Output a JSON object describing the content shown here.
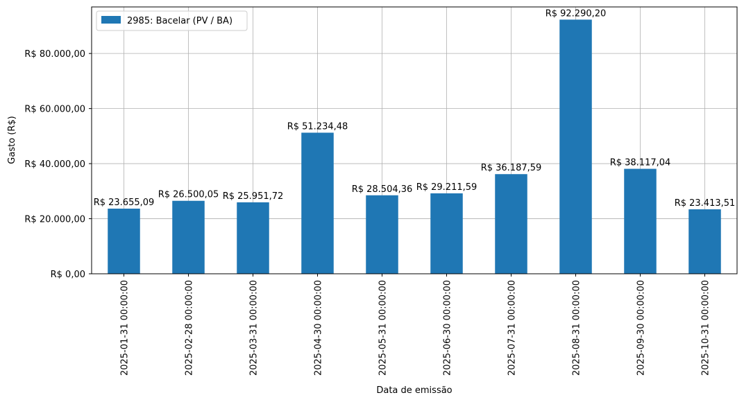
{
  "chart_data": {
    "type": "bar",
    "categories": [
      "2025-01-31 00:00:00",
      "2025-02-28 00:00:00",
      "2025-03-31 00:00:00",
      "2025-04-30 00:00:00",
      "2025-05-31 00:00:00",
      "2025-06-30 00:00:00",
      "2025-07-31 00:00:00",
      "2025-08-31 00:00:00",
      "2025-09-30 00:00:00",
      "2025-10-31 00:00:00"
    ],
    "series": [
      {
        "name": "2985: Bacelar (PV / BA)",
        "color": "#1f77b4",
        "values": [
          23655.09,
          26500.05,
          25951.72,
          51234.48,
          28504.36,
          29211.59,
          36187.59,
          92290.2,
          38117.04,
          23413.51
        ]
      }
    ],
    "data_labels": [
      "R$ 23.655,09",
      "R$ 26.500,05",
      "R$ 25.951,72",
      "R$ 51.234,48",
      "R$ 28.504,36",
      "R$ 29.211,59",
      "R$ 36.187,59",
      "R$ 92.290,20",
      "R$ 38.117,04",
      "R$ 23.413,51"
    ],
    "xlabel": "Data de emissão",
    "ylabel": "Gasto (R$)",
    "ylim": [
      0,
      96904.71
    ],
    "yticks": [
      0,
      20000,
      40000,
      60000,
      80000
    ],
    "ytick_labels": [
      "R$ 0,00",
      "R$ 20.000,00",
      "R$ 40.000,00",
      "R$ 60.000,00",
      "R$ 80.000,00"
    ],
    "grid": true,
    "legend_position": "top-left"
  }
}
